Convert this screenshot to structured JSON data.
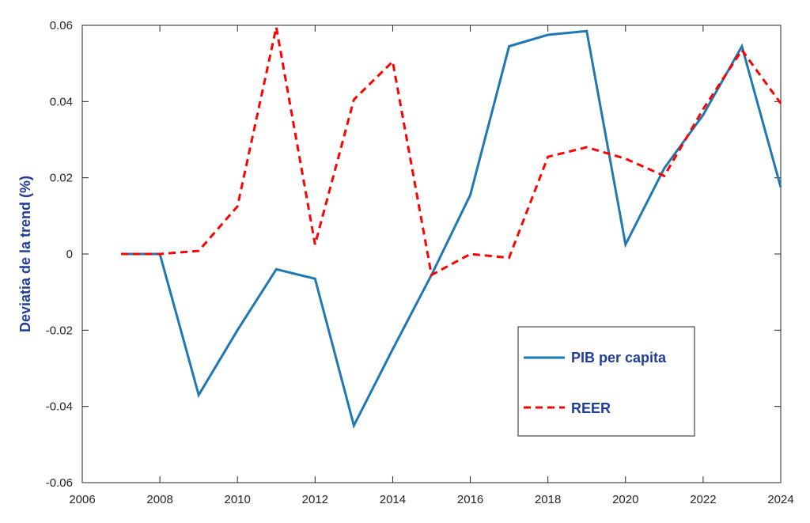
{
  "chart_data": {
    "type": "line",
    "title": "",
    "xlabel": "",
    "ylabel": "Deviatia de la trend (%)",
    "xlim": [
      2006,
      2024
    ],
    "ylim": [
      -0.06,
      0.06
    ],
    "x_ticks": [
      "2006",
      "2008",
      "2010",
      "2012",
      "2014",
      "2016",
      "2018",
      "2020",
      "2022",
      "2024"
    ],
    "y_ticks": [
      "-0.06",
      "-0.04",
      "-0.02",
      "0",
      "0.02",
      "0.04",
      "0.06"
    ],
    "legend_position": "lower-right",
    "grid": false,
    "series": [
      {
        "name": "PIB per capita",
        "color": "#1f77b4",
        "style": "solid",
        "x": [
          2007,
          2008,
          2009,
          2010,
          2011,
          2012,
          2013,
          2014,
          2015,
          2016,
          2017,
          2018,
          2019,
          2020,
          2021,
          2022,
          2023,
          2024
        ],
        "values": [
          0.0,
          0.0,
          -0.037,
          -0.02,
          -0.004,
          -0.0065,
          -0.045,
          -0.025,
          -0.0055,
          0.0155,
          0.0545,
          0.0575,
          0.0585,
          0.0025,
          0.0225,
          0.0365,
          0.0545,
          0.0175
        ]
      },
      {
        "name": "REER",
        "color": "#ff0000",
        "style": "dashed",
        "x": [
          2007,
          2008,
          2009,
          2010,
          2011,
          2012,
          2013,
          2014,
          2015,
          2016,
          2017,
          2018,
          2019,
          2020,
          2021,
          2022,
          2023,
          2024
        ],
        "values": [
          0.0,
          0.0,
          0.0008,
          0.0125,
          0.0595,
          0.0025,
          0.0405,
          0.0505,
          -0.0055,
          0.0,
          -0.001,
          0.0255,
          0.028,
          0.025,
          0.0205,
          0.038,
          0.0535,
          0.0395
        ]
      }
    ]
  }
}
